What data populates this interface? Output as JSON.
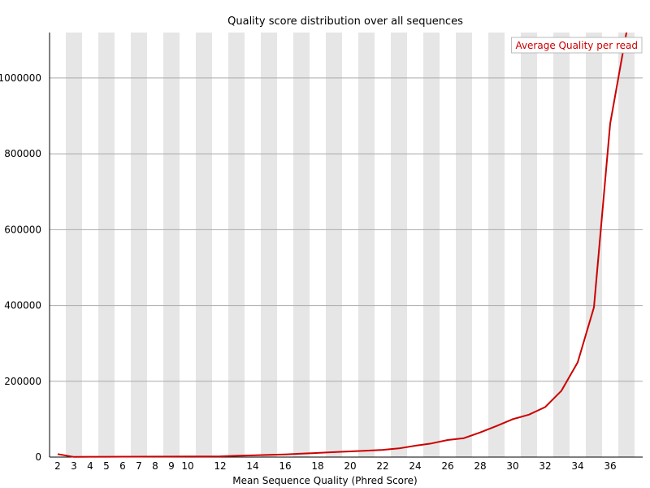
{
  "chart_data": {
    "type": "line",
    "title": "Quality score distribution over all sequences",
    "xlabel": "Mean Sequence Quality (Phred Score)",
    "ylabel": "",
    "x_tick_labels": [
      "2",
      "3",
      "4",
      "5",
      "6",
      "7",
      "8",
      "9",
      "10",
      "12",
      "14",
      "16",
      "18",
      "20",
      "22",
      "24",
      "26",
      "28",
      "30",
      "32",
      "34",
      "36"
    ],
    "y_tick_labels": [
      "0",
      "200000",
      "400000",
      "600000",
      "800000",
      "1000000"
    ],
    "y_ticks": [
      0,
      200000,
      400000,
      600000,
      800000,
      1000000
    ],
    "xlim": [
      2,
      37
    ],
    "ylim": [
      0,
      1120000
    ],
    "grid": true,
    "legend_placement": "top-right",
    "series": [
      {
        "name": "Average Quality per read",
        "color": "#cc0000",
        "x": [
          2,
          3,
          4,
          5,
          6,
          7,
          8,
          9,
          10,
          11,
          12,
          13,
          14,
          15,
          16,
          17,
          18,
          19,
          20,
          21,
          22,
          23,
          24,
          25,
          26,
          27,
          28,
          29,
          30,
          31,
          32,
          33,
          34,
          35,
          36,
          37
        ],
        "y": [
          8000,
          500,
          800,
          900,
          1000,
          1000,
          1200,
          1300,
          1400,
          1500,
          2000,
          3500,
          4500,
          6000,
          7000,
          9000,
          11000,
          13000,
          15000,
          17000,
          19000,
          23000,
          30000,
          36000,
          45000,
          50000,
          65000,
          82000,
          100000,
          112000,
          132000,
          175000,
          250000,
          395000,
          880000,
          1120000
        ]
      }
    ]
  }
}
